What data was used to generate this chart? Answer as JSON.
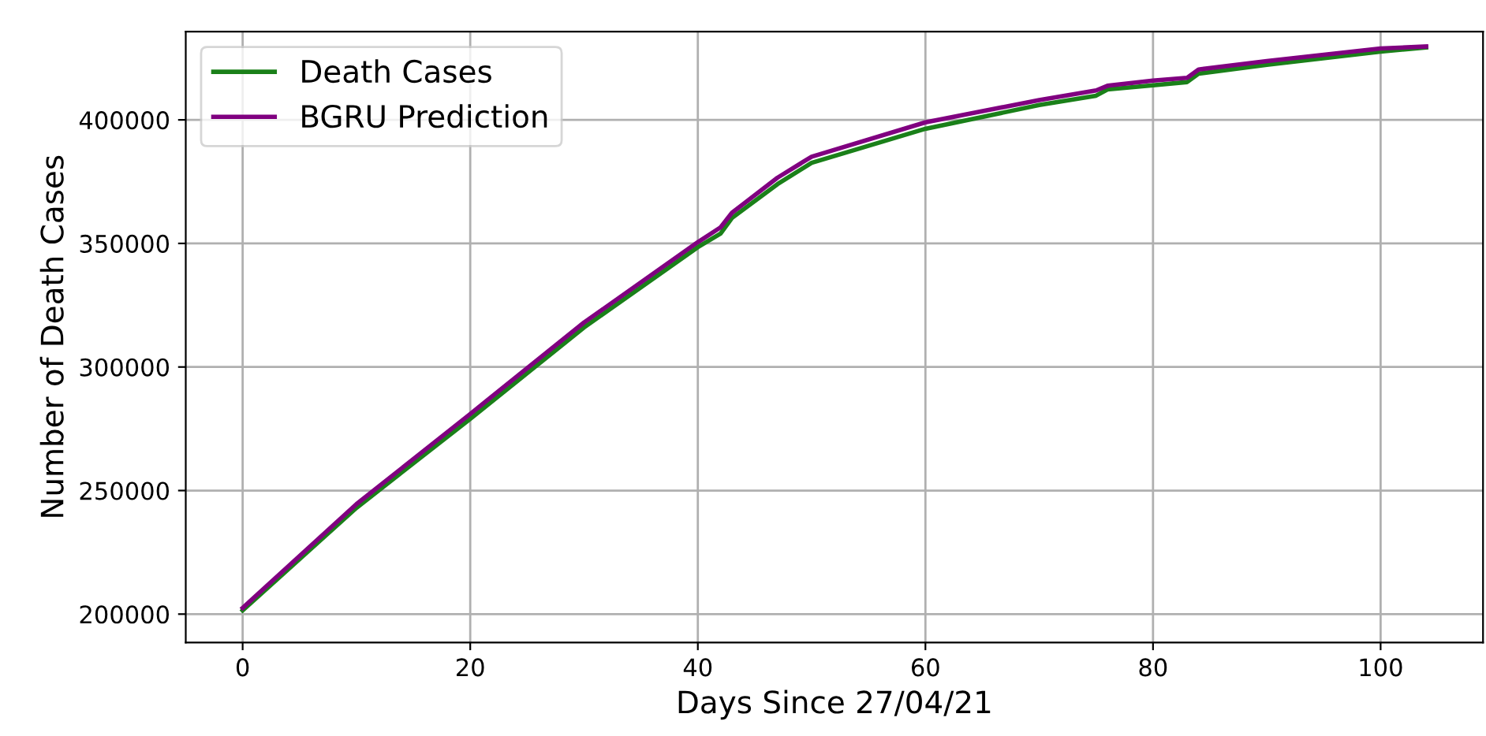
{
  "chart_data": {
    "type": "line",
    "xlabel": "Days Since 27/04/21",
    "ylabel": "Number of Death Cases",
    "xlim": [
      -5,
      109
    ],
    "ylim": [
      188500,
      435700
    ],
    "xticks": [
      0,
      20,
      40,
      60,
      80,
      100
    ],
    "yticks": [
      200000,
      250000,
      300000,
      350000,
      400000
    ],
    "grid": true,
    "legend": "top left",
    "line_style": "solid",
    "marker": "none",
    "series": [
      {
        "name": "Death Cases",
        "color": "#1a8019",
        "x": [
          0,
          10,
          20,
          30,
          40,
          42,
          43,
          47,
          50,
          60,
          70,
          75,
          76,
          80,
          83,
          84,
          90,
          100,
          104
        ],
        "values": [
          201500,
          243000,
          279000,
          316000,
          348500,
          354000,
          360300,
          374000,
          382600,
          396400,
          406000,
          409800,
          412300,
          414000,
          415300,
          418700,
          422300,
          427600,
          429300
        ]
      },
      {
        "name": "BGRU Prediction",
        "color": "#800080",
        "x": [
          0,
          10,
          20,
          30,
          40,
          42,
          43,
          47,
          50,
          60,
          70,
          75,
          76,
          80,
          83,
          84,
          90,
          100,
          104
        ],
        "values": [
          202500,
          244500,
          281000,
          318000,
          350500,
          356500,
          362400,
          376600,
          385100,
          399000,
          408000,
          411900,
          413800,
          415900,
          417000,
          420400,
          423800,
          428900,
          429700
        ]
      }
    ]
  }
}
